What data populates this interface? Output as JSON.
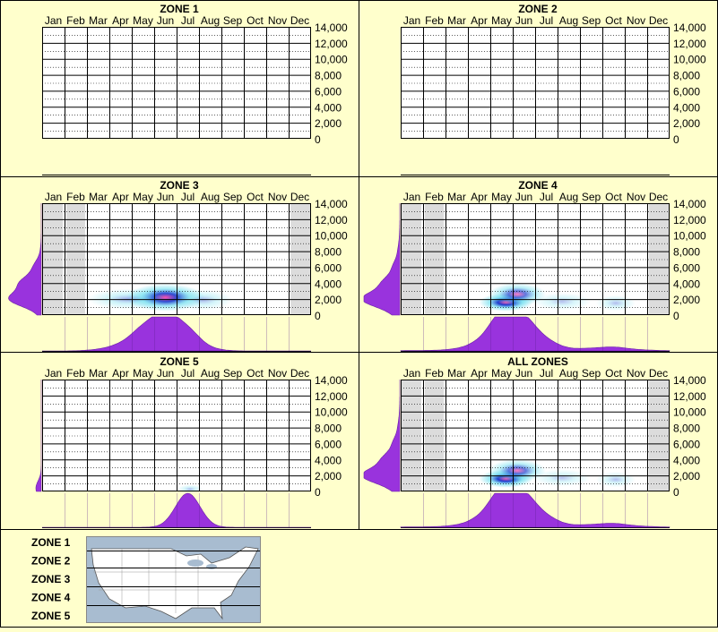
{
  "months": [
    "Jan",
    "Feb",
    "Mar",
    "Apr",
    "May",
    "Jun",
    "Jul",
    "Aug",
    "Sep",
    "Oct",
    "Nov",
    "Dec"
  ],
  "y_ticks": [
    "14,000",
    "12,000",
    "10,000",
    "8,000",
    "6,000",
    "4,000",
    "2,000",
    "0"
  ],
  "colors": {
    "background": "#ffffcc",
    "plot_bg": "#ffffff",
    "grid": "#000000",
    "shade": "#dcdcdc",
    "density": "#9933dd",
    "heat_low": "#66ddee",
    "heat_mid": "#1133cc",
    "heat_high": "#ff44aa",
    "map_water": "#a8bcd0",
    "map_land": "#ffffff"
  },
  "chart_data": [
    {
      "type": "heatmap",
      "title": "ZONE 1",
      "x_categories": [
        "Jan",
        "Feb",
        "Mar",
        "Apr",
        "May",
        "Jun",
        "Jul",
        "Aug",
        "Sep",
        "Oct",
        "Nov",
        "Dec"
      ],
      "ylim": [
        0,
        14000
      ],
      "shaded_months": [],
      "hotspots": [],
      "month_density": [],
      "elevation_density": []
    },
    {
      "type": "heatmap",
      "title": "ZONE 2",
      "x_categories": [
        "Jan",
        "Feb",
        "Mar",
        "Apr",
        "May",
        "Jun",
        "Jul",
        "Aug",
        "Sep",
        "Oct",
        "Nov",
        "Dec"
      ],
      "ylim": [
        0,
        14000
      ],
      "shaded_months": [],
      "hotspots": [],
      "month_density": [],
      "elevation_density": []
    },
    {
      "type": "heatmap",
      "title": "ZONE 3",
      "x_categories": [
        "Jan",
        "Feb",
        "Mar",
        "Apr",
        "May",
        "Jun",
        "Jul",
        "Aug",
        "Sep",
        "Oct",
        "Nov",
        "Dec"
      ],
      "ylim": [
        0,
        14000
      ],
      "shaded_months": [
        "Jan",
        "Feb",
        "Dec"
      ],
      "hotspots": [
        {
          "month": 5.5,
          "elev": 2200,
          "mw": 1.1,
          "ew": 800,
          "intensity": 0.78
        },
        {
          "month": 3.8,
          "elev": 2000,
          "mw": 1.1,
          "ew": 600,
          "intensity": 0.3
        },
        {
          "month": 7.2,
          "elev": 1900,
          "mw": 0.8,
          "ew": 600,
          "intensity": 0.25
        }
      ],
      "month_density": [
        0,
        0,
        0.03,
        0.15,
        0.58,
        0.98,
        0.55,
        0.05,
        0,
        0,
        0,
        0
      ],
      "elevation_density": [
        0.05,
        0.85,
        0.55,
        0.2,
        0.02,
        0,
        0,
        0
      ]
    },
    {
      "type": "heatmap",
      "title": "ZONE 4",
      "x_categories": [
        "Jan",
        "Feb",
        "Mar",
        "Apr",
        "May",
        "Jun",
        "Jul",
        "Aug",
        "Sep",
        "Oct",
        "Nov",
        "Dec"
      ],
      "ylim": [
        0,
        14000
      ],
      "shaded_months": [
        "Jan",
        "Feb",
        "Dec"
      ],
      "hotspots": [
        {
          "month": 4.7,
          "elev": 1600,
          "mw": 0.75,
          "ew": 520,
          "intensity": 1.0
        },
        {
          "month": 5.2,
          "elev": 2600,
          "mw": 0.8,
          "ew": 650,
          "intensity": 0.55
        },
        {
          "month": 9.6,
          "elev": 1500,
          "mw": 0.55,
          "ew": 450,
          "intensity": 0.22
        },
        {
          "month": 7.2,
          "elev": 1700,
          "mw": 0.8,
          "ew": 500,
          "intensity": 0.2
        }
      ],
      "month_density": [
        0.01,
        0.01,
        0.04,
        0.2,
        1.0,
        0.85,
        0.25,
        0.04,
        0.06,
        0.1,
        0.03,
        0.01
      ],
      "elevation_density": [
        0.15,
        1.0,
        0.45,
        0.18,
        0.05,
        0.01,
        0,
        0
      ]
    },
    {
      "type": "heatmap",
      "title": "ZONE 5",
      "x_categories": [
        "Jan",
        "Feb",
        "Mar",
        "Apr",
        "May",
        "Jun",
        "Jul",
        "Aug",
        "Sep",
        "Oct",
        "Nov",
        "Dec"
      ],
      "ylim": [
        0,
        14000
      ],
      "shaded_months": [],
      "hotspots": [
        {
          "month": 6.6,
          "elev": 300,
          "mw": 0.35,
          "ew": 250,
          "intensity": 0.25
        }
      ],
      "month_density": [
        0,
        0,
        0,
        0,
        0,
        0,
        1.0,
        0,
        0,
        0,
        0,
        0
      ],
      "elevation_density": [
        0.15,
        0,
        0,
        0,
        0,
        0,
        0,
        0
      ]
    },
    {
      "type": "heatmap",
      "title": "ALL ZONES",
      "x_categories": [
        "Jan",
        "Feb",
        "Mar",
        "Apr",
        "May",
        "Jun",
        "Jul",
        "Aug",
        "Sep",
        "Oct",
        "Nov",
        "Dec"
      ],
      "ylim": [
        0,
        14000
      ],
      "shaded_months": [
        "Jan",
        "Feb",
        "Dec"
      ],
      "hotspots": [
        {
          "month": 4.7,
          "elev": 1600,
          "mw": 0.75,
          "ew": 520,
          "intensity": 1.0
        },
        {
          "month": 5.2,
          "elev": 2600,
          "mw": 0.8,
          "ew": 650,
          "intensity": 0.55
        },
        {
          "month": 9.6,
          "elev": 1500,
          "mw": 0.55,
          "ew": 450,
          "intensity": 0.22
        },
        {
          "month": 7.2,
          "elev": 1700,
          "mw": 0.8,
          "ew": 500,
          "intensity": 0.2
        }
      ],
      "month_density": [
        0.01,
        0.01,
        0.04,
        0.2,
        1.0,
        0.85,
        0.25,
        0.04,
        0.06,
        0.1,
        0.03,
        0.01
      ],
      "elevation_density": [
        0.15,
        1.0,
        0.45,
        0.18,
        0.05,
        0.01,
        0,
        0
      ]
    }
  ],
  "legend": {
    "zone_labels": [
      "ZONE 1",
      "ZONE 2",
      "ZONE 3",
      "ZONE 4",
      "ZONE 5"
    ]
  }
}
